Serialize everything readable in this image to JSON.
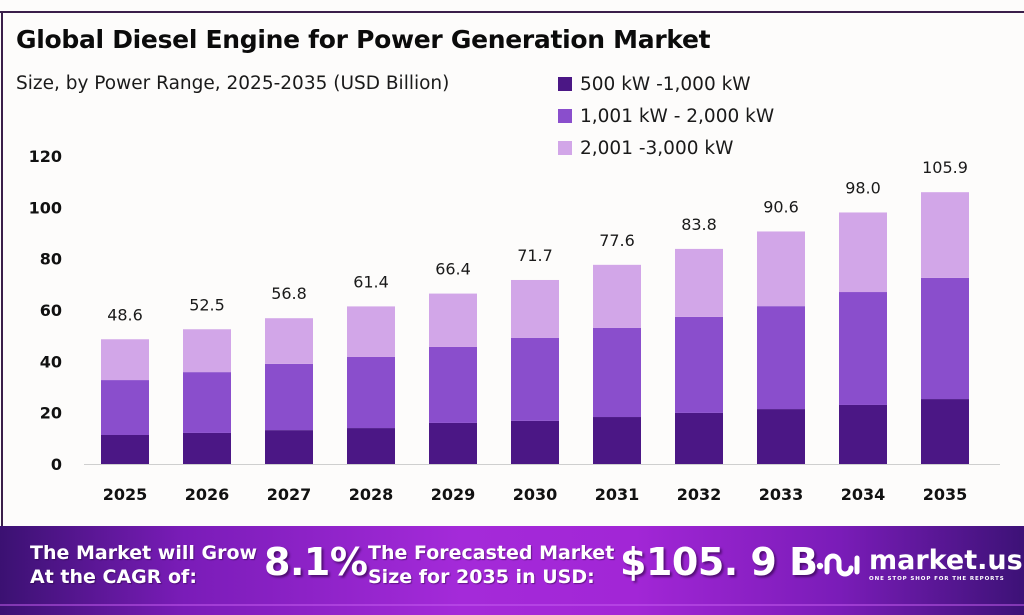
{
  "title": "Global Diesel Engine for Power Generation Market",
  "subtitle": "Size, by Power Range, 2025-2035 (USD Billion)",
  "colors": {
    "series": [
      "#4b1785",
      "#8a4ecc",
      "#d2a6e8"
    ],
    "frame": "#3a1f4a",
    "banner": "#a42ad9"
  },
  "chart_data": {
    "type": "bar",
    "stacked": true,
    "title": "Global Diesel Engine for Power Generation Market",
    "subtitle": "Size, by Power Range, 2025-2035 (USD Billion)",
    "xlabel": "",
    "ylabel": "",
    "categories": [
      "2025",
      "2026",
      "2027",
      "2028",
      "2029",
      "2030",
      "2031",
      "2032",
      "2033",
      "2034",
      "2035"
    ],
    "series": [
      {
        "name": "500 kW -1,000 kW",
        "values": [
          11.3,
          12.1,
          13.2,
          14.0,
          16.0,
          16.8,
          18.3,
          19.9,
          21.4,
          23.0,
          25.3
        ]
      },
      {
        "name": "1,001 kW - 2,000 kW",
        "values": [
          21.4,
          23.7,
          25.8,
          27.7,
          29.6,
          32.3,
          34.7,
          37.4,
          40.1,
          44.0,
          47.2
        ]
      },
      {
        "name": "2,001 -3,000 kW",
        "values": [
          15.9,
          16.7,
          17.8,
          19.7,
          20.8,
          22.6,
          24.6,
          26.5,
          29.1,
          31.0,
          33.4
        ]
      }
    ],
    "totals": [
      48.6,
      52.5,
      56.8,
      61.4,
      66.4,
      71.7,
      77.6,
      83.8,
      90.6,
      98.0,
      105.9
    ],
    "total_labels": [
      "48.6",
      "52.5",
      "56.8",
      "61.4",
      "66.4",
      "71.7",
      "77.6",
      "83.8",
      "90.6",
      "98.0",
      "105.9"
    ],
    "ylim": [
      0,
      120
    ],
    "yticks": [
      0,
      20,
      40,
      60,
      80,
      100,
      120
    ],
    "grid": false,
    "legend_position": "top-right"
  },
  "banner": {
    "cagr_text_line1": "The Market will Grow",
    "cagr_text_line2": "At the CAGR of:",
    "cagr_value": "8.1%",
    "forecast_text_line1": "The Forecasted Market",
    "forecast_text_line2": "Size for 2035 in USD:",
    "forecast_value": "$105. 9 B",
    "logo_name": "market.us",
    "logo_tagline": "ONE STOP SHOP FOR THE REPORTS"
  }
}
